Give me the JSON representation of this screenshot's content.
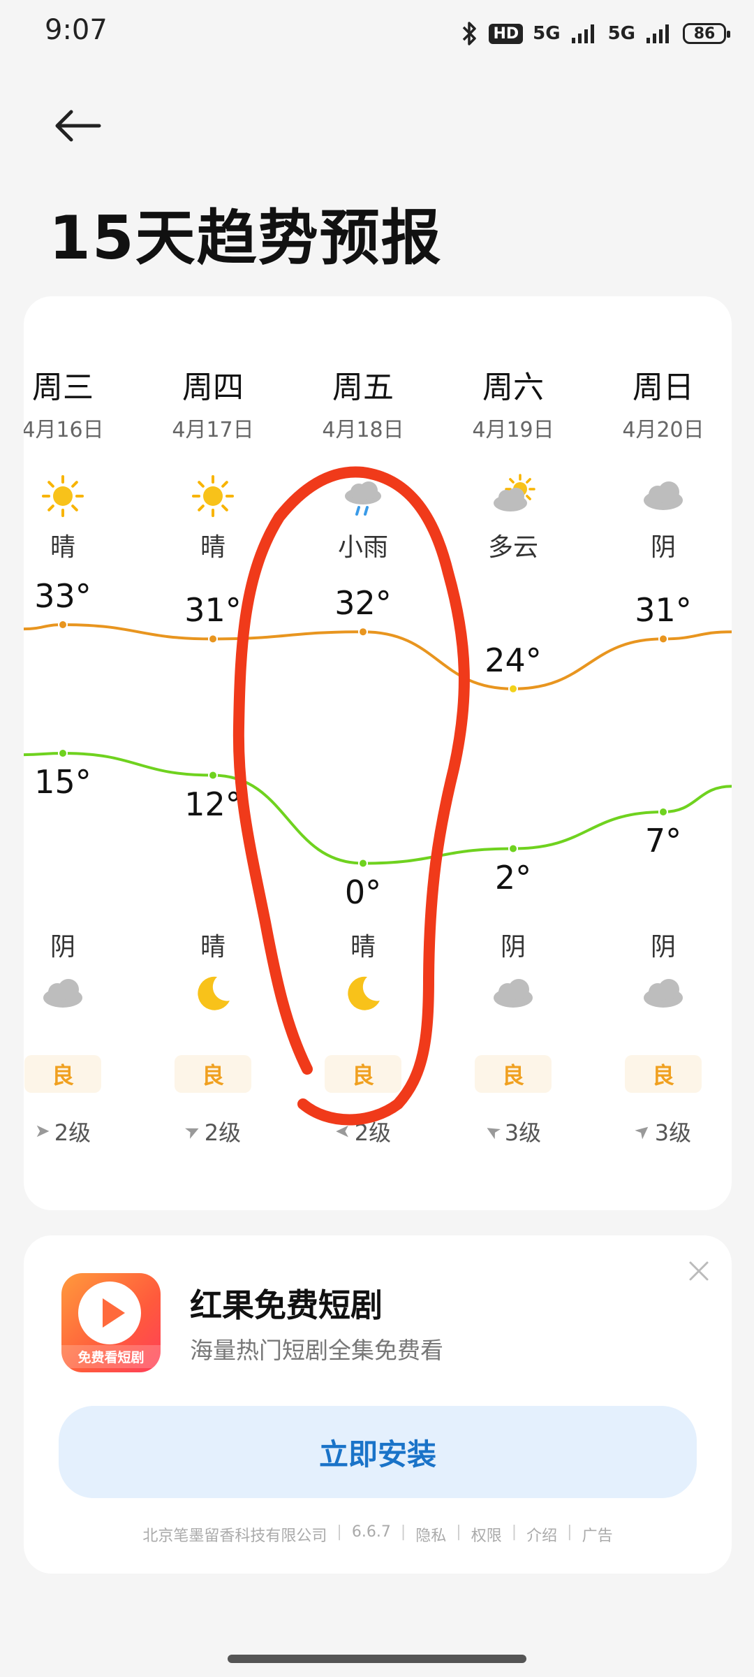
{
  "status_bar": {
    "time": "9:07",
    "bluetooth_icon": "bluetooth-icon",
    "hd_label": "HD",
    "network1": "5G",
    "network2": "5G",
    "battery": "86"
  },
  "header": {
    "back_icon": "arrow-left-icon",
    "title": "15天趋势预报"
  },
  "forecast": {
    "days": [
      {
        "weekday": "周三",
        "date": "4月16日",
        "day_icon": "sun-icon",
        "day_cond": "晴",
        "high": "33°",
        "low": "15°",
        "night_cond": "阴",
        "night_icon": "cloud-icon",
        "aqi": "良",
        "wind_level": "2级",
        "wind_dir": "east"
      },
      {
        "weekday": "周四",
        "date": "4月17日",
        "day_icon": "sun-icon",
        "day_cond": "晴",
        "high": "31°",
        "low": "12°",
        "night_cond": "晴",
        "night_icon": "moon-icon",
        "aqi": "良",
        "wind_level": "2级",
        "wind_dir": "southeast"
      },
      {
        "weekday": "周五",
        "date": "4月18日",
        "day_icon": "rain-icon",
        "day_cond": "小雨",
        "high": "32°",
        "low": "0°",
        "night_cond": "晴",
        "night_icon": "moon-icon",
        "aqi": "良",
        "wind_level": "2级",
        "wind_dir": "west"
      },
      {
        "weekday": "周六",
        "date": "4月19日",
        "day_icon": "partly-cloudy-icon",
        "day_cond": "多云",
        "high": "24°",
        "low": "2°",
        "night_cond": "阴",
        "night_icon": "cloud-icon",
        "aqi": "良",
        "wind_level": "3级",
        "wind_dir": "southwest"
      },
      {
        "weekday": "周日",
        "date": "4月20日",
        "day_icon": "cloud-icon",
        "day_cond": "阴",
        "high": "31°",
        "low": "7°",
        "night_cond": "阴",
        "night_icon": "cloud-icon",
        "aqi": "良",
        "wind_level": "3级",
        "wind_dir": "northeast"
      }
    ],
    "high_values": [
      33,
      31,
      32,
      24,
      31
    ],
    "low_values": [
      15,
      12,
      0,
      2,
      7
    ],
    "colors": {
      "high_line": "#e8951f",
      "low_line": "#6fd21f",
      "aqi_text": "#f0a020"
    }
  },
  "ad": {
    "app_icon": "play-icon",
    "icon_label": "免费看短剧",
    "title": "红果免费短剧",
    "subtitle": "海量热门短剧全集免费看",
    "install_label": "立即安装",
    "close_icon": "close-icon",
    "footer": {
      "company": "北京笔墨留香科技有限公司",
      "version": "6.6.7",
      "privacy": "隐私",
      "permissions": "权限",
      "intro": "介绍",
      "ad_label": "广告"
    }
  }
}
